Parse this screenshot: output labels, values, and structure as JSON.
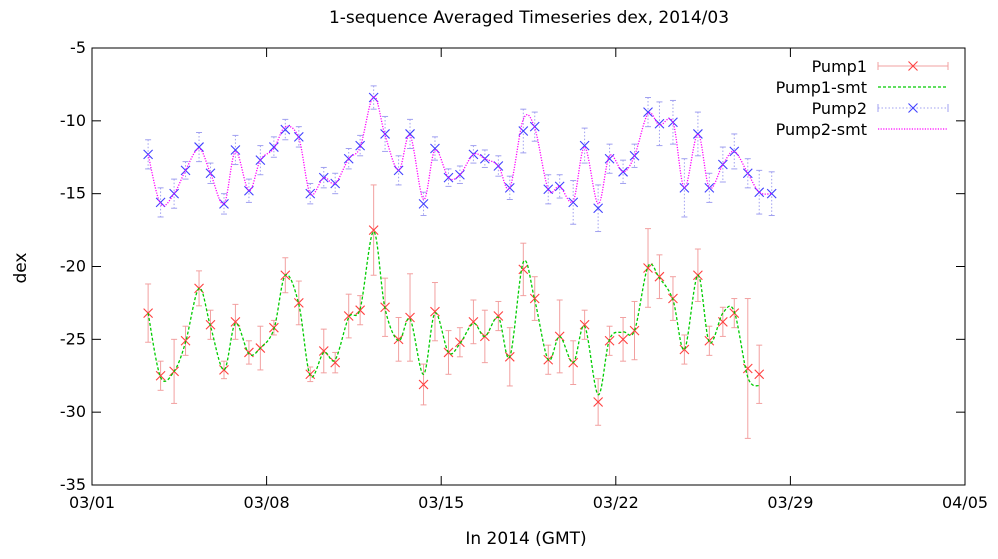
{
  "chart_data": {
    "type": "line",
    "title": "1-sequence Averaged Timeseries dex, 2014/03",
    "xlabel": "In 2014 (GMT)",
    "ylabel": "dex",
    "xlim": [
      "2014-03-01",
      "2014-04-05"
    ],
    "ylim": [
      -35,
      -5
    ],
    "x_tick_labels": [
      "03/01",
      "03/08",
      "03/15",
      "03/22",
      "03/29",
      "04/05"
    ],
    "y_ticks": [
      -35,
      -30,
      -25,
      -20,
      -15,
      -10,
      -5
    ],
    "legend_position": "top-right",
    "grid": false,
    "series": [
      {
        "name": "Pump1",
        "style": "points-with-errorbars",
        "marker": "x",
        "color": "#ff4040",
        "errorbar_color": "#f2a0a0",
        "points": [
          [
            "2014-03-03T06:00",
            -23.2,
            2.0
          ],
          [
            "2014-03-03T18:00",
            -27.5,
            1.0
          ],
          [
            "2014-03-04T07:00",
            -27.2,
            2.2
          ],
          [
            "2014-03-04T18:00",
            -25.1,
            1.0
          ],
          [
            "2014-03-05T07:00",
            -21.5,
            1.2
          ],
          [
            "2014-03-05T18:00",
            -24.0,
            1.0
          ],
          [
            "2014-03-06T07:00",
            -27.1,
            0.6
          ],
          [
            "2014-03-06T18:00",
            -23.8,
            1.2
          ],
          [
            "2014-03-07T07:00",
            -25.9,
            0.8
          ],
          [
            "2014-03-07T18:00",
            -25.6,
            1.5
          ],
          [
            "2014-03-08T07:00",
            -24.2,
            0.5
          ],
          [
            "2014-03-08T18:00",
            -20.6,
            1.2
          ],
          [
            "2014-03-09T07:00",
            -22.5,
            1.5
          ],
          [
            "2014-03-09T18:00",
            -27.4,
            0.5
          ],
          [
            "2014-03-10T07:00",
            -25.8,
            1.5
          ],
          [
            "2014-03-10T18:00",
            -26.6,
            0.7
          ],
          [
            "2014-03-11T07:00",
            -23.4,
            1.5
          ],
          [
            "2014-03-11T18:00",
            -23.0,
            1.0
          ],
          [
            "2014-03-12T07:00",
            -17.5,
            3.1
          ],
          [
            "2014-03-12T18:00",
            -22.8,
            2.0
          ],
          [
            "2014-03-13T07:00",
            -25.0,
            1.5
          ],
          [
            "2014-03-13T18:00",
            -23.5,
            3.0
          ],
          [
            "2014-03-14T07:00",
            -28.1,
            1.4
          ],
          [
            "2014-03-14T18:00",
            -23.1,
            2.0
          ],
          [
            "2014-03-15T07:00",
            -25.9,
            1.5
          ],
          [
            "2014-03-15T18:00",
            -25.2,
            1.0
          ],
          [
            "2014-03-16T07:00",
            -23.8,
            1.5
          ],
          [
            "2014-03-16T18:00",
            -24.8,
            1.8
          ],
          [
            "2014-03-17T07:00",
            -23.4,
            1.0
          ],
          [
            "2014-03-17T18:00",
            -26.2,
            2.0
          ],
          [
            "2014-03-18T07:00",
            -20.2,
            1.8
          ],
          [
            "2014-03-18T18:00",
            -22.2,
            1.5
          ],
          [
            "2014-03-19T07:00",
            -26.4,
            1.0
          ],
          [
            "2014-03-19T18:00",
            -24.8,
            2.5
          ],
          [
            "2014-03-20T07:00",
            -26.6,
            1.5
          ],
          [
            "2014-03-20T18:00",
            -24.0,
            1.0
          ],
          [
            "2014-03-21T07:00",
            -29.3,
            1.6
          ],
          [
            "2014-03-21T18:00",
            -25.1,
            1.0
          ],
          [
            "2014-03-22T07:00",
            -25.0,
            1.5
          ],
          [
            "2014-03-22T18:00",
            -24.4,
            2.0
          ],
          [
            "2014-03-23T07:00",
            -20.1,
            2.7
          ],
          [
            "2014-03-23T18:00",
            -20.7,
            1.5
          ],
          [
            "2014-03-24T07:00",
            -22.2,
            1.5
          ],
          [
            "2014-03-24T18:00",
            -25.7,
            1.0
          ],
          [
            "2014-03-25T07:00",
            -20.6,
            1.8
          ],
          [
            "2014-03-25T18:00",
            -25.1,
            1.0
          ],
          [
            "2014-03-26T07:00",
            -23.8,
            1.0
          ],
          [
            "2014-03-26T18:00",
            -23.2,
            1.0
          ],
          [
            "2014-03-27T07:00",
            -27.0,
            4.8
          ],
          [
            "2014-03-27T18:00",
            -27.4,
            2.0
          ]
        ]
      },
      {
        "name": "Pump1-smt",
        "style": "dashed-line",
        "color": "#00cc00",
        "points": [
          [
            "2014-03-03T06:00",
            -23.2
          ],
          [
            "2014-03-03T18:00",
            -27.6
          ],
          [
            "2014-03-04T07:00",
            -27.2
          ],
          [
            "2014-03-04T18:00",
            -25.2
          ],
          [
            "2014-03-05T07:00",
            -21.5
          ],
          [
            "2014-03-05T18:00",
            -24.1
          ],
          [
            "2014-03-06T07:00",
            -27.1
          ],
          [
            "2014-03-06T18:00",
            -23.9
          ],
          [
            "2014-03-07T07:00",
            -26.0
          ],
          [
            "2014-03-07T18:00",
            -25.6
          ],
          [
            "2014-03-08T07:00",
            -24.3
          ],
          [
            "2014-03-08T18:00",
            -20.6
          ],
          [
            "2014-03-09T07:00",
            -22.6
          ],
          [
            "2014-03-09T18:00",
            -27.5
          ],
          [
            "2014-03-10T07:00",
            -25.9
          ],
          [
            "2014-03-10T18:00",
            -26.4
          ],
          [
            "2014-03-11T07:00",
            -23.5
          ],
          [
            "2014-03-11T18:00",
            -22.9
          ],
          [
            "2014-03-12T07:00",
            -17.6
          ],
          [
            "2014-03-12T18:00",
            -22.9
          ],
          [
            "2014-03-13T07:00",
            -25.1
          ],
          [
            "2014-03-13T18:00",
            -23.6
          ],
          [
            "2014-03-14T07:00",
            -27.4
          ],
          [
            "2014-03-14T18:00",
            -23.2
          ],
          [
            "2014-03-15T07:00",
            -25.9
          ],
          [
            "2014-03-15T18:00",
            -25.3
          ],
          [
            "2014-03-16T07:00",
            -23.9
          ],
          [
            "2014-03-16T18:00",
            -24.8
          ],
          [
            "2014-03-17T07:00",
            -23.5
          ],
          [
            "2014-03-17T18:00",
            -26.2
          ],
          [
            "2014-03-18T07:00",
            -19.7
          ],
          [
            "2014-03-18T18:00",
            -22.3
          ],
          [
            "2014-03-19T07:00",
            -26.4
          ],
          [
            "2014-03-19T18:00",
            -24.8
          ],
          [
            "2014-03-20T07:00",
            -26.6
          ],
          [
            "2014-03-20T18:00",
            -24.1
          ],
          [
            "2014-03-21T07:00",
            -28.8
          ],
          [
            "2014-03-21T18:00",
            -25.0
          ],
          [
            "2014-03-22T07:00",
            -24.5
          ],
          [
            "2014-03-22T18:00",
            -24.4
          ],
          [
            "2014-03-23T07:00",
            -20.0
          ],
          [
            "2014-03-23T18:00",
            -20.8
          ],
          [
            "2014-03-24T07:00",
            -22.3
          ],
          [
            "2014-03-24T18:00",
            -25.7
          ],
          [
            "2014-03-25T07:00",
            -20.6
          ],
          [
            "2014-03-25T18:00",
            -25.2
          ],
          [
            "2014-03-26T07:00",
            -23.2
          ],
          [
            "2014-03-26T18:00",
            -23.1
          ],
          [
            "2014-03-27T07:00",
            -27.6
          ],
          [
            "2014-03-27T18:00",
            -28.2
          ]
        ]
      },
      {
        "name": "Pump2",
        "style": "points-with-errorbars",
        "marker": "x",
        "color": "#4040ff",
        "errorbar_color": "#a0a0f0",
        "points": [
          [
            "2014-03-03T06:00",
            -12.3,
            1.0
          ],
          [
            "2014-03-03T18:00",
            -15.6,
            1.0
          ],
          [
            "2014-03-04T07:00",
            -15.0,
            1.0
          ],
          [
            "2014-03-04T18:00",
            -13.4,
            0.6
          ],
          [
            "2014-03-05T07:00",
            -11.8,
            1.0
          ],
          [
            "2014-03-05T18:00",
            -13.6,
            0.7
          ],
          [
            "2014-03-06T07:00",
            -15.7,
            0.7
          ],
          [
            "2014-03-06T18:00",
            -12.0,
            1.0
          ],
          [
            "2014-03-07T07:00",
            -14.8,
            0.8
          ],
          [
            "2014-03-07T18:00",
            -12.7,
            1.0
          ],
          [
            "2014-03-08T07:00",
            -11.8,
            0.7
          ],
          [
            "2014-03-08T18:00",
            -10.6,
            0.7
          ],
          [
            "2014-03-09T07:00",
            -11.1,
            0.7
          ],
          [
            "2014-03-09T18:00",
            -15.0,
            0.7
          ],
          [
            "2014-03-10T07:00",
            -13.9,
            0.7
          ],
          [
            "2014-03-10T18:00",
            -14.3,
            0.7
          ],
          [
            "2014-03-11T07:00",
            -12.6,
            0.7
          ],
          [
            "2014-03-11T18:00",
            -11.7,
            0.7
          ],
          [
            "2014-03-12T07:00",
            -8.4,
            0.8
          ],
          [
            "2014-03-12T18:00",
            -10.9,
            1.2
          ],
          [
            "2014-03-13T07:00",
            -13.4,
            1.0
          ],
          [
            "2014-03-13T18:00",
            -10.9,
            1.0
          ],
          [
            "2014-03-14T07:00",
            -15.7,
            0.8
          ],
          [
            "2014-03-14T18:00",
            -11.9,
            0.8
          ],
          [
            "2014-03-15T07:00",
            -13.9,
            0.6
          ],
          [
            "2014-03-15T18:00",
            -13.7,
            0.6
          ],
          [
            "2014-03-16T07:00",
            -12.3,
            0.6
          ],
          [
            "2014-03-16T18:00",
            -12.6,
            0.6
          ],
          [
            "2014-03-17T07:00",
            -13.1,
            0.7
          ],
          [
            "2014-03-17T18:00",
            -14.6,
            0.8
          ],
          [
            "2014-03-18T07:00",
            -10.7,
            1.5
          ],
          [
            "2014-03-18T18:00",
            -10.4,
            1.0
          ],
          [
            "2014-03-19T07:00",
            -14.7,
            1.0
          ],
          [
            "2014-03-19T18:00",
            -14.5,
            0.8
          ],
          [
            "2014-03-20T07:00",
            -15.6,
            1.5
          ],
          [
            "2014-03-20T18:00",
            -11.7,
            1.2
          ],
          [
            "2014-03-21T07:00",
            -16.0,
            1.6
          ],
          [
            "2014-03-21T18:00",
            -12.6,
            1.0
          ],
          [
            "2014-03-22T07:00",
            -13.5,
            0.8
          ],
          [
            "2014-03-22T18:00",
            -12.4,
            0.8
          ],
          [
            "2014-03-23T07:00",
            -9.4,
            1.0
          ],
          [
            "2014-03-23T18:00",
            -10.2,
            1.5
          ],
          [
            "2014-03-24T07:00",
            -10.1,
            1.5
          ],
          [
            "2014-03-24T18:00",
            -14.6,
            2.0
          ],
          [
            "2014-03-25T07:00",
            -10.9,
            1.5
          ],
          [
            "2014-03-25T18:00",
            -14.6,
            1.0
          ],
          [
            "2014-03-26T07:00",
            -13.0,
            1.2
          ],
          [
            "2014-03-26T18:00",
            -12.1,
            1.2
          ],
          [
            "2014-03-27T07:00",
            -13.6,
            1.0
          ],
          [
            "2014-03-27T18:00",
            -14.9,
            1.5
          ],
          [
            "2014-03-28T06:00",
            -15.0,
            1.5
          ]
        ]
      },
      {
        "name": "Pump2-smt",
        "style": "dotted-line",
        "color": "#ff00ff",
        "points": [
          [
            "2014-03-03T06:00",
            -12.3
          ],
          [
            "2014-03-03T18:00",
            -15.7
          ],
          [
            "2014-03-04T07:00",
            -15.0
          ],
          [
            "2014-03-04T18:00",
            -13.4
          ],
          [
            "2014-03-05T07:00",
            -11.9
          ],
          [
            "2014-03-05T18:00",
            -13.6
          ],
          [
            "2014-03-06T07:00",
            -15.7
          ],
          [
            "2014-03-06T18:00",
            -12.1
          ],
          [
            "2014-03-07T07:00",
            -14.8
          ],
          [
            "2014-03-07T18:00",
            -12.7
          ],
          [
            "2014-03-08T07:00",
            -11.9
          ],
          [
            "2014-03-08T18:00",
            -10.4
          ],
          [
            "2014-03-09T07:00",
            -11.2
          ],
          [
            "2014-03-09T18:00",
            -15.0
          ],
          [
            "2014-03-10T07:00",
            -13.9
          ],
          [
            "2014-03-10T18:00",
            -14.3
          ],
          [
            "2014-03-11T07:00",
            -12.6
          ],
          [
            "2014-03-11T18:00",
            -11.8
          ],
          [
            "2014-03-12T07:00",
            -8.3
          ],
          [
            "2014-03-12T18:00",
            -11.0
          ],
          [
            "2014-03-13T07:00",
            -13.4
          ],
          [
            "2014-03-13T18:00",
            -11.0
          ],
          [
            "2014-03-14T07:00",
            -15.4
          ],
          [
            "2014-03-14T18:00",
            -12.0
          ],
          [
            "2014-03-15T07:00",
            -13.9
          ],
          [
            "2014-03-15T18:00",
            -13.7
          ],
          [
            "2014-03-16T07:00",
            -12.3
          ],
          [
            "2014-03-16T18:00",
            -12.6
          ],
          [
            "2014-03-17T07:00",
            -13.1
          ],
          [
            "2014-03-17T18:00",
            -14.6
          ],
          [
            "2014-03-18T07:00",
            -9.9
          ],
          [
            "2014-03-18T18:00",
            -10.5
          ],
          [
            "2014-03-19T07:00",
            -14.7
          ],
          [
            "2014-03-19T18:00",
            -14.5
          ],
          [
            "2014-03-20T07:00",
            -15.5
          ],
          [
            "2014-03-20T18:00",
            -11.8
          ],
          [
            "2014-03-21T07:00",
            -15.7
          ],
          [
            "2014-03-21T18:00",
            -12.4
          ],
          [
            "2014-03-22T07:00",
            -13.5
          ],
          [
            "2014-03-22T18:00",
            -12.4
          ],
          [
            "2014-03-23T07:00",
            -9.5
          ],
          [
            "2014-03-23T18:00",
            -10.3
          ],
          [
            "2014-03-24T07:00",
            -10.1
          ],
          [
            "2014-03-24T18:00",
            -14.6
          ],
          [
            "2014-03-25T07:00",
            -10.9
          ],
          [
            "2014-03-25T18:00",
            -14.6
          ],
          [
            "2014-03-26T07:00",
            -13.0
          ],
          [
            "2014-03-26T18:00",
            -12.1
          ],
          [
            "2014-03-27T07:00",
            -13.6
          ],
          [
            "2014-03-27T18:00",
            -14.9
          ],
          [
            "2014-03-28T06:00",
            -15.0
          ]
        ]
      }
    ]
  }
}
